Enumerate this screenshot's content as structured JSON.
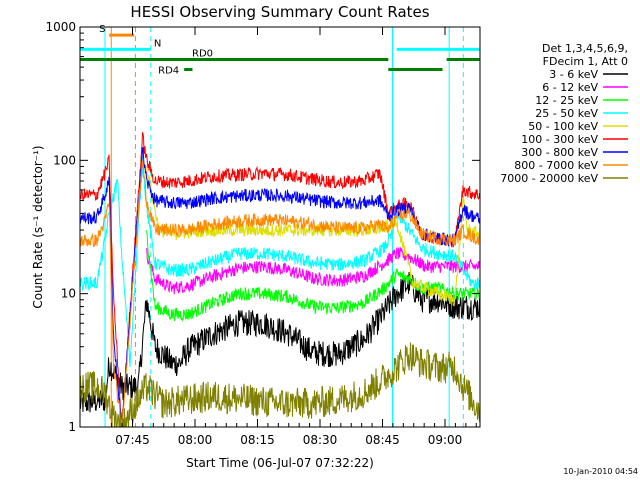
{
  "chart_data": {
    "type": "line",
    "title": "HESSI Observing Summary Count Rates",
    "xlabel": "Start Time (06-Jul-07 07:32:22)",
    "ylabel": "Count Rate (s⁻¹ detector⁻¹)",
    "yscale": "log",
    "ylim": [
      1,
      1000
    ],
    "xlim_minutes": [
      0,
      96
    ],
    "x_ticks": [
      {
        "label": "07:45",
        "minute": 12.6
      },
      {
        "label": "08:00",
        "minute": 27.6
      },
      {
        "label": "08:15",
        "minute": 42.6
      },
      {
        "label": "08:30",
        "minute": 57.6
      },
      {
        "label": "08:45",
        "minute": 72.6
      },
      {
        "label": "09:00",
        "minute": 87.6
      }
    ],
    "y_ticks": [
      {
        "label": "1",
        "value": 1
      },
      {
        "label": "10",
        "value": 10
      },
      {
        "label": "100",
        "value": 100
      },
      {
        "label": "1000",
        "value": 1000
      }
    ],
    "legend_header": [
      "Det 1,3,4,5,6,9,",
      "FDecim 1, Att 0"
    ],
    "legend_position": "right",
    "timestamp": "10-Jan-2010 04:54",
    "series": [
      {
        "name": "3 - 6 keV",
        "color": "#000000",
        "points": [
          [
            0,
            1.5
          ],
          [
            6,
            1.6
          ],
          [
            7,
            3
          ],
          [
            10,
            2
          ],
          [
            14,
            2
          ],
          [
            16,
            9
          ],
          [
            18,
            4
          ],
          [
            22,
            3
          ],
          [
            24,
            3
          ],
          [
            26,
            3.8
          ],
          [
            32,
            5
          ],
          [
            38,
            6
          ],
          [
            44,
            6
          ],
          [
            50,
            5
          ],
          [
            56,
            3.6
          ],
          [
            62,
            3.5
          ],
          [
            68,
            4.5
          ],
          [
            72,
            6.5
          ],
          [
            76,
            10
          ],
          [
            79,
            12
          ],
          [
            82,
            9
          ],
          [
            86,
            9
          ],
          [
            90,
            8
          ],
          [
            96,
            8
          ]
        ]
      },
      {
        "name": "6 - 12 keV",
        "color": "#ff00ff",
        "points": [
          [
            16,
            20
          ],
          [
            18,
            13
          ],
          [
            22,
            11
          ],
          [
            26,
            11.5
          ],
          [
            32,
            13.5
          ],
          [
            38,
            15.5
          ],
          [
            44,
            16
          ],
          [
            50,
            15
          ],
          [
            56,
            13
          ],
          [
            62,
            12.5
          ],
          [
            68,
            13.5
          ],
          [
            73,
            17
          ],
          [
            76,
            20
          ],
          [
            79,
            19
          ],
          [
            83,
            16
          ],
          [
            88,
            16
          ],
          [
            92,
            16
          ],
          [
            96,
            16
          ]
        ]
      },
      {
        "name": "12 - 25 keV",
        "color": "#00ff00",
        "points": [
          [
            16,
            28
          ],
          [
            18,
            8
          ],
          [
            22,
            7
          ],
          [
            26,
            7
          ],
          [
            32,
            8.5
          ],
          [
            38,
            10
          ],
          [
            44,
            10
          ],
          [
            50,
            9.5
          ],
          [
            56,
            8
          ],
          [
            62,
            7.8
          ],
          [
            68,
            8.5
          ],
          [
            73,
            11
          ],
          [
            76,
            14
          ],
          [
            79,
            13
          ],
          [
            82,
            11
          ],
          [
            86,
            11
          ],
          [
            90,
            10
          ],
          [
            96,
            10
          ]
        ]
      },
      {
        "name": "25 - 50 keV",
        "color": "#00ffff",
        "points": [
          [
            0,
            12
          ],
          [
            4,
            12
          ],
          [
            6,
            25
          ],
          [
            7,
            40
          ],
          [
            9,
            70
          ],
          [
            10,
            20
          ],
          [
            12,
            3
          ],
          [
            15,
            100
          ],
          [
            16,
            45
          ],
          [
            18,
            17
          ],
          [
            22,
            15
          ],
          [
            26,
            15
          ],
          [
            32,
            17.5
          ],
          [
            38,
            20
          ],
          [
            44,
            20
          ],
          [
            50,
            19
          ],
          [
            56,
            17
          ],
          [
            62,
            16.5
          ],
          [
            68,
            17.5
          ],
          [
            73,
            22
          ],
          [
            75,
            28
          ],
          [
            76,
            40
          ],
          [
            79,
            30
          ],
          [
            82,
            22
          ],
          [
            86,
            20
          ],
          [
            90,
            19
          ],
          [
            94,
            12
          ],
          [
            96,
            12
          ]
        ]
      },
      {
        "name": "50 - 100 keV",
        "color": "#dddd00",
        "points": [
          [
            16,
            90
          ],
          [
            17,
            60
          ],
          [
            19,
            30
          ],
          [
            22,
            28
          ],
          [
            30,
            30
          ],
          [
            40,
            30
          ],
          [
            50,
            30
          ],
          [
            60,
            30
          ],
          [
            70,
            30
          ],
          [
            74,
            32
          ],
          [
            76,
            35
          ],
          [
            78,
            20
          ],
          [
            80,
            12
          ],
          [
            86,
            10
          ],
          [
            90,
            9
          ],
          [
            92,
            50
          ],
          [
            93,
            30
          ],
          [
            96,
            28
          ]
        ]
      },
      {
        "name": "100 - 300 keV",
        "color": "#ff0000",
        "points": [
          [
            0,
            55
          ],
          [
            4,
            55
          ],
          [
            6,
            80
          ],
          [
            7,
            100
          ],
          [
            8,
            10
          ],
          [
            10,
            1
          ],
          [
            15,
            150
          ],
          [
            16,
            100
          ],
          [
            18,
            70
          ],
          [
            22,
            68
          ],
          [
            26,
            70
          ],
          [
            32,
            76
          ],
          [
            38,
            78
          ],
          [
            44,
            80
          ],
          [
            50,
            78
          ],
          [
            56,
            72
          ],
          [
            62,
            68
          ],
          [
            68,
            70
          ],
          [
            72,
            80
          ],
          [
            74,
            40
          ],
          [
            76,
            45
          ],
          [
            79,
            48
          ],
          [
            82,
            28
          ],
          [
            86,
            26
          ],
          [
            90,
            25
          ],
          [
            92,
            62
          ],
          [
            93,
            58
          ],
          [
            96,
            55
          ]
        ]
      },
      {
        "name": "300 - 800 keV",
        "color": "#0000ff",
        "points": [
          [
            0,
            37
          ],
          [
            4,
            37
          ],
          [
            6,
            55
          ],
          [
            7,
            70
          ],
          [
            8,
            5
          ],
          [
            10,
            1
          ],
          [
            15,
            120
          ],
          [
            16,
            70
          ],
          [
            18,
            50
          ],
          [
            22,
            48
          ],
          [
            26,
            48
          ],
          [
            32,
            52
          ],
          [
            38,
            54
          ],
          [
            44,
            55
          ],
          [
            50,
            54
          ],
          [
            56,
            50
          ],
          [
            62,
            48
          ],
          [
            68,
            48
          ],
          [
            72,
            50
          ],
          [
            74,
            38
          ],
          [
            76,
            42
          ],
          [
            79,
            45
          ],
          [
            82,
            28
          ],
          [
            86,
            26
          ],
          [
            90,
            25
          ],
          [
            92,
            45
          ],
          [
            93,
            40
          ],
          [
            96,
            36
          ]
        ]
      },
      {
        "name": "800 - 7000 keV",
        "color": "#ff8800",
        "points": [
          [
            0,
            25
          ],
          [
            4,
            25
          ],
          [
            6,
            35
          ],
          [
            7,
            50
          ],
          [
            8,
            3
          ],
          [
            10,
            1
          ],
          [
            15,
            100
          ],
          [
            16,
            50
          ],
          [
            18,
            30
          ],
          [
            22,
            30
          ],
          [
            26,
            30
          ],
          [
            32,
            33
          ],
          [
            38,
            35
          ],
          [
            44,
            36
          ],
          [
            50,
            35
          ],
          [
            56,
            33
          ],
          [
            62,
            31
          ],
          [
            68,
            31
          ],
          [
            72,
            33
          ],
          [
            74,
            30
          ],
          [
            76,
            38
          ],
          [
            79,
            40
          ],
          [
            82,
            28
          ],
          [
            86,
            26
          ],
          [
            90,
            25
          ],
          [
            92,
            30
          ],
          [
            93,
            28
          ],
          [
            96,
            25
          ]
        ]
      },
      {
        "name": "7000 - 20000 keV",
        "color": "#808000",
        "points": [
          [
            0,
            2
          ],
          [
            4,
            2
          ],
          [
            6,
            1.8
          ],
          [
            8,
            1.2
          ],
          [
            10,
            1
          ],
          [
            14,
            1.6
          ],
          [
            16,
            2
          ],
          [
            20,
            1.5
          ],
          [
            26,
            1.6
          ],
          [
            32,
            1.7
          ],
          [
            40,
            1.6
          ],
          [
            48,
            1.5
          ],
          [
            56,
            1.5
          ],
          [
            62,
            1.6
          ],
          [
            68,
            1.8
          ],
          [
            72,
            2.2
          ],
          [
            76,
            2.8
          ],
          [
            79,
            3.5
          ],
          [
            82,
            3
          ],
          [
            86,
            2.8
          ],
          [
            90,
            2.8
          ],
          [
            92,
            2
          ],
          [
            96,
            1.3
          ]
        ]
      }
    ],
    "flags": [
      {
        "label": "S",
        "color": "#ff8800",
        "level": 870,
        "x_start": 7,
        "x_end": 13
      },
      {
        "label": "N",
        "color": "#00ffff",
        "level": 680,
        "x_start": 0,
        "x_end": 17
      },
      {
        "label": "N",
        "color": "#00ffff",
        "level": 680,
        "x_start": 76,
        "x_end": 96
      },
      {
        "label": "RD0",
        "color": "#008000",
        "level": 570,
        "x_start": 0,
        "x_end": 74
      },
      {
        "label": "RD0",
        "color": "#008000",
        "level": 570,
        "x_start": 88,
        "x_end": 96
      },
      {
        "label": "RD4",
        "color": "#008000",
        "level": 480,
        "x_start": 25,
        "x_end": 27
      },
      {
        "label": "RD4",
        "color": "#008000",
        "level": 480,
        "x_start": 74,
        "x_end": 87
      }
    ],
    "vertical_lines": [
      {
        "minute": 6,
        "color": "#00ffff",
        "style": "solid"
      },
      {
        "minute": 7.5,
        "color": "#ff8800",
        "style": "solid"
      },
      {
        "minute": 13.3,
        "color": "#ff8800",
        "style": "dashed"
      },
      {
        "minute": 17,
        "color": "#00ffff",
        "style": "dashed"
      },
      {
        "minute": 75,
        "color": "#00ffff",
        "style": "solid"
      },
      {
        "minute": 88.6,
        "color": "#00ffff",
        "style": "solid"
      },
      {
        "minute": 92,
        "color": "#00ffff",
        "style": "dashed"
      }
    ]
  }
}
